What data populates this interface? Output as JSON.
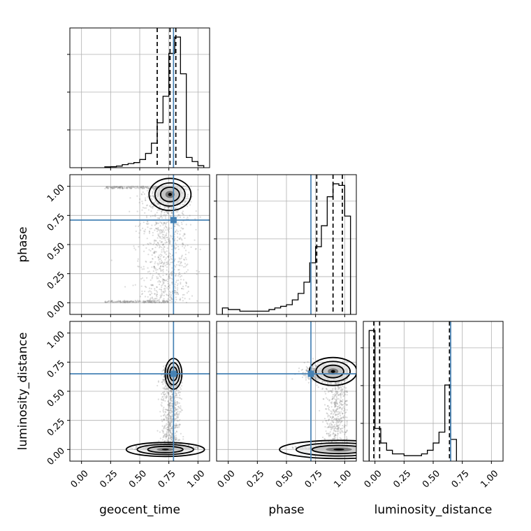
{
  "chart_data": {
    "type": "corner",
    "parameters": [
      "geocent_time",
      "phase",
      "luminosity_distance"
    ],
    "axis_range": [
      -0.1,
      1.1
    ],
    "ticks": [
      "0.00",
      "0.25",
      "0.50",
      "0.75",
      "1.00"
    ],
    "tick_values": [
      0,
      0.25,
      0.5,
      0.75,
      1.0
    ],
    "grid": true,
    "colors": {
      "truth": "#4682b4",
      "hist": "#000000",
      "points": "#808080"
    },
    "truths": {
      "geocent_time": 0.79,
      "phase": 0.71,
      "luminosity_distance": 0.65
    },
    "quantiles": {
      "geocent_time": [
        0.65,
        0.76,
        0.81
      ],
      "phase": [
        0.76,
        0.9,
        0.98
      ],
      "luminosity_distance": [
        -0.01,
        0.04,
        0.64
      ]
    },
    "histograms": {
      "geocent_time": {
        "edges": [
          0.2,
          0.25,
          0.3,
          0.35,
          0.4,
          0.45,
          0.5,
          0.55,
          0.6,
          0.65,
          0.7,
          0.75,
          0.8,
          0.85,
          0.9,
          0.95,
          1.0,
          1.05
        ],
        "counts": [
          0.4,
          0.5,
          0.8,
          1.5,
          2,
          2.5,
          4,
          7,
          12,
          22,
          35,
          56,
          64,
          46,
          5,
          3,
          1
        ]
      },
      "phase": {
        "edges": [
          -0.05,
          0.0,
          0.05,
          0.1,
          0.15,
          0.2,
          0.25,
          0.3,
          0.35,
          0.4,
          0.45,
          0.5,
          0.55,
          0.6,
          0.65,
          0.7,
          0.75,
          0.8,
          0.85,
          0.9,
          0.95,
          1.0,
          1.05
        ],
        "counts": [
          4,
          3,
          3,
          2,
          2,
          2,
          2,
          2,
          3,
          4,
          5,
          6,
          9,
          13,
          20,
          32,
          42,
          55,
          73,
          81,
          80,
          61
        ]
      },
      "luminosity_distance": {
        "edges": [
          -0.05,
          0.0,
          0.05,
          0.1,
          0.15,
          0.2,
          0.25,
          0.3,
          0.35,
          0.4,
          0.45,
          0.5,
          0.55,
          0.6,
          0.65,
          0.7
        ],
        "counts": [
          36,
          9,
          5,
          3,
          2,
          2,
          1.5,
          1.5,
          1.5,
          2,
          3,
          5,
          8,
          21,
          6
        ]
      }
    },
    "contour_centers": {
      "phase_vs_geocent_time": [
        0.76,
        0.93
      ],
      "luminosity_distance_vs_geocent_time_low": [
        0.72,
        0.0
      ],
      "luminosity_distance_vs_geocent_time_high": [
        0.79,
        0.65
      ],
      "luminosity_distance_vs_phase_low": [
        0.95,
        0.0
      ],
      "luminosity_distance_vs_phase_high": [
        0.9,
        0.67
      ]
    }
  }
}
